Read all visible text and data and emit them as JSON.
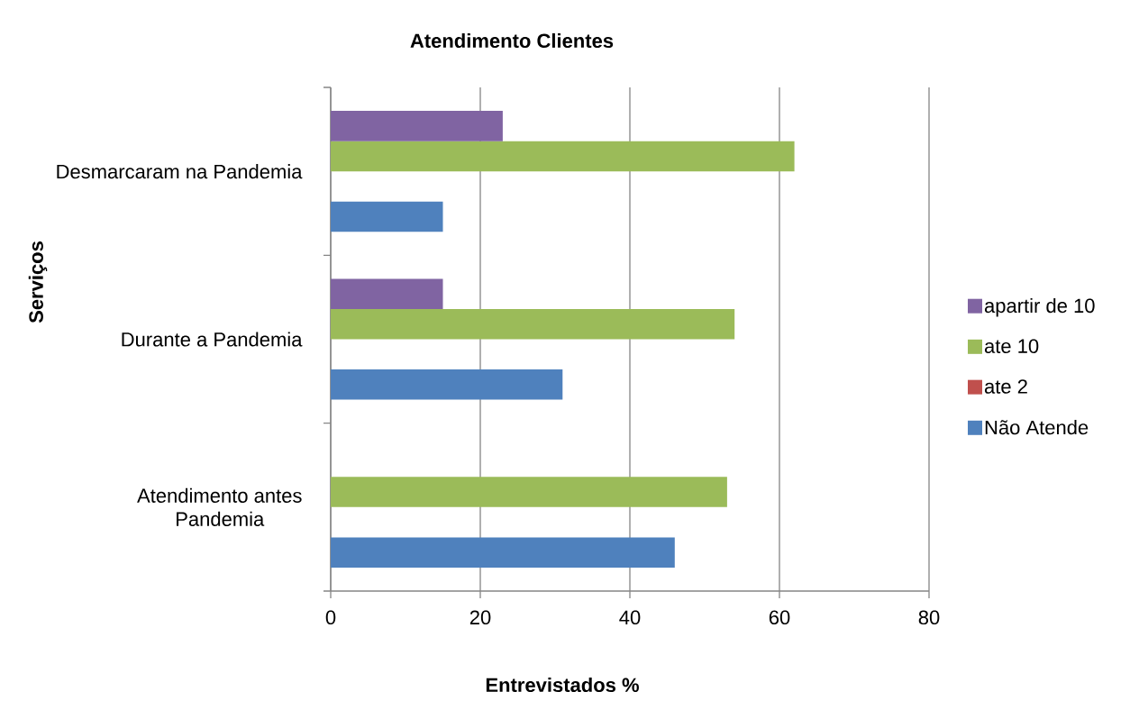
{
  "chart_data": {
    "type": "bar",
    "orientation": "horizontal",
    "title": "Atendimento Clientes",
    "xlabel": "Entrevistados %",
    "ylabel": "Serviços",
    "categories": [
      "Desmarcaram na Pandemia",
      "Durante a Pandemia",
      "Atendimento antes Pandemia"
    ],
    "series": [
      {
        "name": "Não Atende",
        "color": "#4f81bd",
        "values": [
          15,
          31,
          46
        ]
      },
      {
        "name": "ate 2",
        "color": "#c0504d",
        "values": [
          0,
          0,
          0
        ]
      },
      {
        "name": "ate 10",
        "color": "#9bbb59",
        "values": [
          62,
          54,
          53
        ]
      },
      {
        "name": "apartir de 10",
        "color": "#8064a2",
        "values": [
          23,
          15,
          0
        ]
      }
    ],
    "xlim": [
      0,
      80
    ],
    "xticks": [
      0,
      20,
      40,
      60,
      80
    ],
    "grid": "x",
    "legend": "right"
  }
}
